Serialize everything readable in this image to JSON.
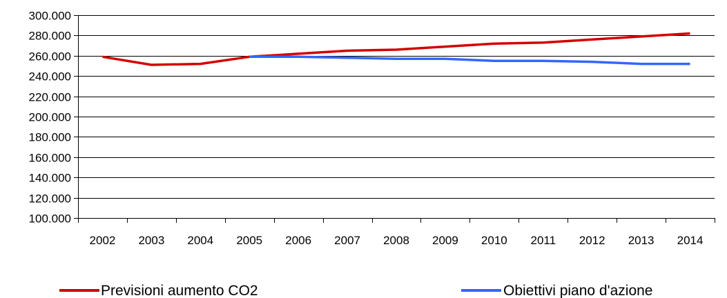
{
  "chart_data": {
    "type": "line",
    "title": "",
    "xlabel": "",
    "ylabel": "",
    "categories": [
      "2002",
      "2003",
      "2004",
      "2005",
      "2006",
      "2007",
      "2008",
      "2009",
      "2010",
      "2011",
      "2012",
      "2013",
      "2014"
    ],
    "ylim": [
      100000,
      300000
    ],
    "yticks": [
      100000,
      120000,
      140000,
      160000,
      180000,
      200000,
      220000,
      240000,
      260000,
      280000,
      300000
    ],
    "ytick_labels": [
      "100.000",
      "120.000",
      "140.000",
      "160.000",
      "180.000",
      "200.000",
      "220.000",
      "240.000",
      "260.000",
      "280.000",
      "300.000"
    ],
    "grid": true,
    "legend_position": "bottom",
    "series": [
      {
        "name": "Previsioni aumento CO2",
        "color": "#d40000",
        "values": [
          259000,
          251000,
          252000,
          259000,
          262000,
          265000,
          266000,
          269000,
          272000,
          273000,
          276000,
          279000,
          282000
        ]
      },
      {
        "name": "Obiettivi piano d'azione",
        "color": "#3366ff",
        "values": [
          null,
          null,
          null,
          259000,
          259000,
          258000,
          257000,
          257000,
          255000,
          255000,
          254000,
          252000,
          252000
        ]
      }
    ]
  }
}
